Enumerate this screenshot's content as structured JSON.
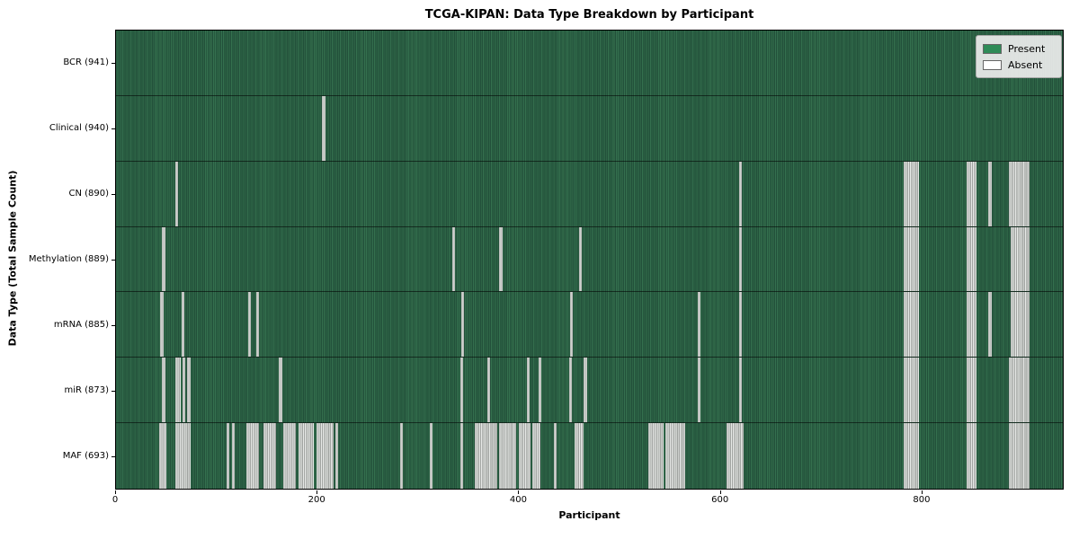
{
  "chart_data": {
    "type": "heatmap",
    "title": "TCGA-KIPAN: Data Type Breakdown by Participant",
    "xlabel": "Participant",
    "ylabel": "Data Type (Total Sample Count)",
    "x_max": 941,
    "x_ticks": [
      0,
      200,
      400,
      600,
      800
    ],
    "grid": false,
    "legend_position": "upper right",
    "legend": [
      {
        "label": "Present",
        "color": "#2e8b57"
      },
      {
        "label": "Absent",
        "color": "#ffffff"
      }
    ],
    "colors": {
      "present_fill": "#2e8b57",
      "present_dark_texture": "#27593f",
      "absent_fill": "#c9ccc9",
      "plot_border": "#000000"
    },
    "rows": [
      {
        "label": "BCR (941)",
        "data_type": "BCR",
        "present_count": 941,
        "absent_ranges": []
      },
      {
        "label": "Clinical (940)",
        "data_type": "Clinical",
        "present_count": 940,
        "absent_ranges": [
          [
            205,
            208
          ]
        ]
      },
      {
        "label": "CN (890)",
        "data_type": "CN",
        "present_count": 890,
        "absent_ranges": [
          [
            59,
            62
          ],
          [
            619,
            622
          ],
          [
            783,
            798
          ],
          [
            845,
            855
          ],
          [
            867,
            870
          ],
          [
            887,
            908
          ]
        ]
      },
      {
        "label": "Methylation (889)",
        "data_type": "Methylation",
        "present_count": 889,
        "absent_ranges": [
          [
            46,
            49
          ],
          [
            334,
            337
          ],
          [
            381,
            384
          ],
          [
            460,
            463
          ],
          [
            619,
            622
          ],
          [
            783,
            798
          ],
          [
            845,
            855
          ],
          [
            889,
            908
          ]
        ]
      },
      {
        "label": "mRNA (885)",
        "data_type": "mRNA",
        "present_count": 885,
        "absent_ranges": [
          [
            44,
            47
          ],
          [
            65,
            68
          ],
          [
            131,
            134
          ],
          [
            139,
            142
          ],
          [
            343,
            346
          ],
          [
            451,
            454
          ],
          [
            578,
            581
          ],
          [
            619,
            622
          ],
          [
            783,
            798
          ],
          [
            845,
            855
          ],
          [
            867,
            870
          ],
          [
            889,
            908
          ]
        ]
      },
      {
        "label": "miR (873)",
        "data_type": "miR",
        "present_count": 873,
        "absent_ranges": [
          [
            46,
            49
          ],
          [
            59,
            64
          ],
          [
            66,
            69
          ],
          [
            71,
            74
          ],
          [
            162,
            165
          ],
          [
            342,
            345
          ],
          [
            369,
            372
          ],
          [
            408,
            411
          ],
          [
            420,
            423
          ],
          [
            450,
            453
          ],
          [
            465,
            468
          ],
          [
            578,
            581
          ],
          [
            619,
            622
          ],
          [
            783,
            798
          ],
          [
            845,
            855
          ],
          [
            887,
            908
          ]
        ]
      },
      {
        "label": "MAF (693)",
        "data_type": "MAF",
        "present_count": 693,
        "absent_ranges": [
          [
            43,
            50
          ],
          [
            59,
            74
          ],
          [
            110,
            113
          ],
          [
            115,
            118
          ],
          [
            130,
            142
          ],
          [
            147,
            159
          ],
          [
            166,
            179
          ],
          [
            181,
            197
          ],
          [
            199,
            216
          ],
          [
            218,
            221
          ],
          [
            282,
            285
          ],
          [
            312,
            315
          ],
          [
            342,
            345
          ],
          [
            357,
            379
          ],
          [
            381,
            398
          ],
          [
            400,
            412
          ],
          [
            414,
            422
          ],
          [
            435,
            438
          ],
          [
            456,
            465
          ],
          [
            529,
            544
          ],
          [
            546,
            566
          ],
          [
            607,
            624
          ],
          [
            783,
            798
          ],
          [
            845,
            855
          ],
          [
            887,
            908
          ]
        ]
      }
    ]
  }
}
